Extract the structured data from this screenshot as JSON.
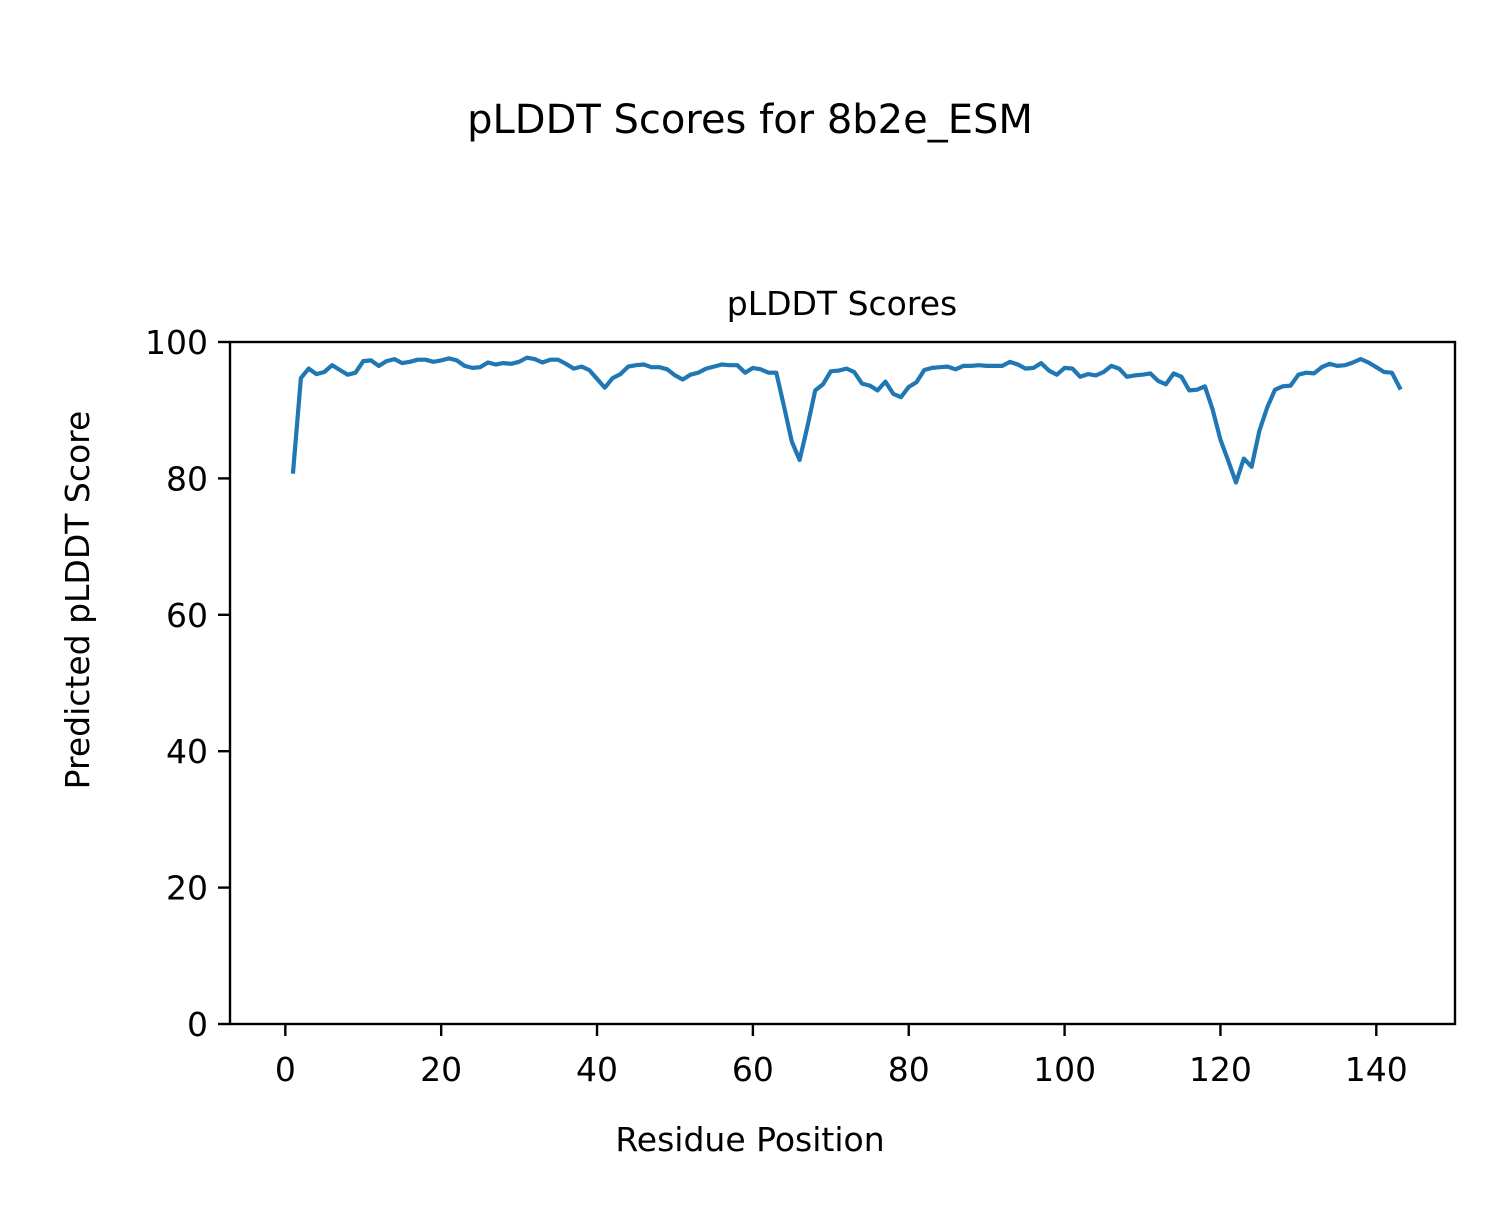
{
  "figure_title": "pLDDT Scores for 8b2e_ESM",
  "chart_data": {
    "type": "line",
    "title": "pLDDT Scores",
    "xlabel": "Residue Position",
    "ylabel": "Predicted pLDDT Score",
    "xlim": [
      -7.1,
      150.1
    ],
    "ylim": [
      0,
      100
    ],
    "xticks": [
      0,
      20,
      40,
      60,
      80,
      100,
      120,
      140
    ],
    "yticks": [
      0,
      20,
      40,
      60,
      80,
      100
    ],
    "grid": false,
    "series": [
      {
        "color": "#1f77b4",
        "x": [
          1,
          2,
          3,
          4,
          5,
          6,
          7,
          8,
          9,
          10,
          11,
          12,
          13,
          14,
          15,
          16,
          17,
          18,
          19,
          20,
          21,
          22,
          23,
          24,
          25,
          26,
          27,
          28,
          29,
          30,
          31,
          32,
          33,
          34,
          35,
          36,
          37,
          38,
          39,
          40,
          41,
          42,
          43,
          44,
          45,
          46,
          47,
          48,
          49,
          50,
          51,
          52,
          53,
          54,
          55,
          56,
          57,
          58,
          59,
          60,
          61,
          62,
          63,
          64,
          65,
          66,
          67,
          68,
          69,
          70,
          71,
          72,
          73,
          74,
          75,
          76,
          77,
          78,
          79,
          80,
          81,
          82,
          83,
          84,
          85,
          86,
          87,
          88,
          89,
          90,
          91,
          92,
          93,
          94,
          95,
          96,
          97,
          98,
          99,
          100,
          101,
          102,
          103,
          104,
          105,
          106,
          107,
          108,
          109,
          110,
          111,
          112,
          113,
          114,
          115,
          116,
          117,
          118,
          119,
          120,
          121,
          122,
          123,
          124,
          125,
          126,
          127,
          128,
          129,
          130,
          131,
          132,
          133,
          134,
          135,
          136,
          137,
          138,
          139,
          140,
          141,
          142,
          143
        ],
        "y": [
          81.0,
          94.7,
          96.1,
          95.3,
          95.6,
          96.6,
          95.9,
          95.2,
          95.5,
          97.2,
          97.3,
          96.5,
          97.2,
          97.5,
          96.9,
          97.1,
          97.4,
          97.4,
          97.1,
          97.3,
          97.6,
          97.3,
          96.5,
          96.2,
          96.3,
          97.0,
          96.7,
          96.9,
          96.8,
          97.1,
          97.7,
          97.5,
          97.0,
          97.4,
          97.4,
          96.8,
          96.1,
          96.4,
          95.9,
          94.6,
          93.3,
          94.7,
          95.3,
          96.4,
          96.6,
          96.7,
          96.3,
          96.3,
          96.0,
          95.1,
          94.5,
          95.2,
          95.5,
          96.1,
          96.4,
          96.7,
          96.6,
          96.6,
          95.5,
          96.2,
          96.0,
          95.5,
          95.5,
          90.5,
          85.4,
          82.7,
          87.6,
          92.9,
          93.8,
          95.7,
          95.8,
          96.1,
          95.6,
          93.9,
          93.6,
          92.9,
          94.2,
          92.4,
          91.9,
          93.4,
          94.1,
          95.9,
          96.2,
          96.3,
          96.4,
          96.0,
          96.5,
          96.5,
          96.6,
          96.5,
          96.5,
          96.5,
          97.1,
          96.7,
          96.1,
          96.2,
          96.9,
          95.8,
          95.2,
          96.2,
          96.1,
          94.9,
          95.3,
          95.1,
          95.6,
          96.5,
          96.1,
          94.9,
          95.1,
          95.2,
          95.4,
          94.3,
          93.8,
          95.4,
          94.9,
          92.9,
          93.0,
          93.5,
          90.1,
          85.7,
          82.6,
          79.4,
          82.9,
          81.7,
          87.0,
          90.4,
          93.0,
          93.5,
          93.6,
          95.2,
          95.5,
          95.4,
          96.3,
          96.8,
          96.5,
          96.6,
          97.0,
          97.5,
          97.0,
          96.3,
          95.6,
          95.5,
          93.3
        ]
      }
    ]
  }
}
